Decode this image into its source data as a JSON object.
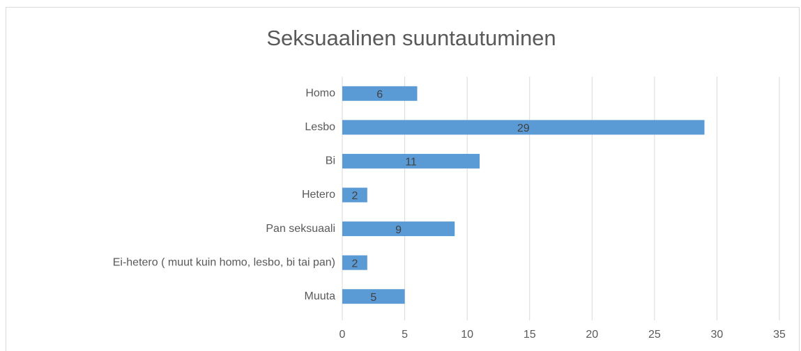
{
  "chart_data": {
    "type": "barh",
    "title": "Seksuaalinen suuntautuminen",
    "categories": [
      "Homo",
      "Lesbo",
      "Bi",
      "Hetero",
      "Pan seksuaali",
      "Ei-hetero ( muut kuin homo, lesbo, bi tai pan)",
      "Muuta"
    ],
    "values": [
      6,
      29,
      11,
      2,
      9,
      2,
      5
    ],
    "color": "#5b9bd5",
    "xlim": [
      0,
      35
    ],
    "xticks": [
      0,
      5,
      10,
      15,
      20,
      25,
      30,
      35
    ],
    "grid": true
  }
}
